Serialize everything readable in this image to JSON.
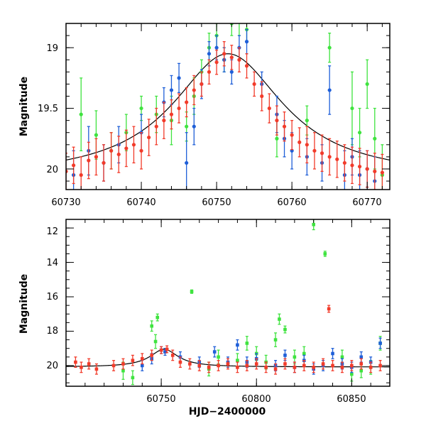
{
  "colors": {
    "green": "#3fe33f",
    "blue": "#1f5fd8",
    "red": "#f23b2a",
    "model": "#000000"
  },
  "chart_data": [
    {
      "type": "scatter",
      "name": "top-panel",
      "xlabel": "",
      "ylabel": "Magnitude",
      "xlim": [
        60730,
        60773
      ],
      "ylim": [
        20.17,
        18.8
      ],
      "y_inverted": true,
      "x_ticks": [
        "60730",
        "60740",
        "60750",
        "60760",
        "60770"
      ],
      "y_ticks": [
        "19",
        "19.5",
        "20"
      ],
      "grid": false,
      "model_curve": {
        "type": "lorentzian",
        "peak_x": 60751.5,
        "peak_mag": 19.05,
        "baseline_mag": 20.08,
        "width": 9
      },
      "series": [
        {
          "color": "green",
          "points": [
            [
              60732,
              19.55,
              0.3
            ],
            [
              60734,
              19.72,
              0.2
            ],
            [
              60736,
              19.85,
              0.15
            ],
            [
              60738,
              19.7,
              0.15
            ],
            [
              60740,
              19.5,
              0.1
            ],
            [
              60742,
              19.55,
              0.15
            ],
            [
              60744,
              19.6,
              0.2
            ],
            [
              60746,
              19.65,
              0.12
            ],
            [
              60747,
              19.4,
              0.15
            ],
            [
              60748,
              19.2,
              0.1
            ],
            [
              60749,
              19.0,
              0.12
            ],
            [
              60750,
              18.9,
              0.1
            ],
            [
              60751,
              19.1,
              0.1
            ],
            [
              60752,
              18.8,
              0.1
            ],
            [
              60753,
              18.75,
              0.15
            ],
            [
              60754,
              18.85,
              0.1
            ],
            [
              60758,
              19.75,
              0.15
            ],
            [
              60762,
              19.6,
              0.12
            ],
            [
              60765,
              19.0,
              0.12
            ],
            [
              60768,
              19.5,
              0.3
            ],
            [
              60769,
              19.7,
              0.2
            ],
            [
              60770,
              19.3,
              0.2
            ],
            [
              60771,
              19.75,
              0.25
            ],
            [
              60772,
              20.05,
              0.25
            ]
          ]
        },
        {
          "color": "blue",
          "points": [
            [
              60731,
              20.05,
              0.2
            ],
            [
              60733,
              19.85,
              0.2
            ],
            [
              60735,
              19.95,
              0.15
            ],
            [
              60737,
              19.8,
              0.15
            ],
            [
              60740,
              19.7,
              0.15
            ],
            [
              60743,
              19.45,
              0.12
            ],
            [
              60744,
              19.35,
              0.12
            ],
            [
              60745,
              19.25,
              0.12
            ],
            [
              60746,
              19.95,
              0.25
            ],
            [
              60747,
              19.65,
              0.15
            ],
            [
              60748,
              19.3,
              0.12
            ],
            [
              60749,
              19.05,
              0.1
            ],
            [
              60750,
              19.0,
              0.1
            ],
            [
              60751,
              19.1,
              0.1
            ],
            [
              60752,
              19.2,
              0.1
            ],
            [
              60753,
              19.0,
              0.1
            ],
            [
              60754,
              18.95,
              0.1
            ],
            [
              60756,
              19.3,
              0.1
            ],
            [
              60758,
              19.55,
              0.15
            ],
            [
              60759,
              19.75,
              0.15
            ],
            [
              60760,
              19.85,
              0.15
            ],
            [
              60762,
              19.9,
              0.15
            ],
            [
              60764,
              19.95,
              0.15
            ],
            [
              60765,
              19.35,
              0.2
            ],
            [
              60767,
              20.05,
              0.2
            ],
            [
              60768,
              19.9,
              0.15
            ],
            [
              60769,
              20.05,
              0.2
            ],
            [
              60770,
              20.0,
              0.15
            ],
            [
              60771,
              20.1,
              0.2
            ]
          ]
        },
        {
          "color": "red",
          "points": [
            [
              60730,
              20.02,
              0.15
            ],
            [
              60731,
              19.97,
              0.15
            ],
            [
              60732,
              20.05,
              0.15
            ],
            [
              60733,
              19.93,
              0.15
            ],
            [
              60734,
              19.9,
              0.15
            ],
            [
              60735,
              19.95,
              0.15
            ],
            [
              60736,
              19.85,
              0.15
            ],
            [
              60737,
              19.88,
              0.15
            ],
            [
              60738,
              19.83,
              0.15
            ],
            [
              60739,
              19.8,
              0.15
            ],
            [
              60740,
              19.85,
              0.15
            ],
            [
              60741,
              19.74,
              0.15
            ],
            [
              60742,
              19.65,
              0.15
            ],
            [
              60743,
              19.6,
              0.15
            ],
            [
              60744,
              19.55,
              0.12
            ],
            [
              60745,
              19.5,
              0.12
            ],
            [
              60746,
              19.45,
              0.12
            ],
            [
              60747,
              19.35,
              0.12
            ],
            [
              60748,
              19.3,
              0.1
            ],
            [
              60749,
              19.2,
              0.1
            ],
            [
              60750,
              19.12,
              0.1
            ],
            [
              60751,
              19.05,
              0.1
            ],
            [
              60752,
              19.08,
              0.1
            ],
            [
              60753,
              19.1,
              0.1
            ],
            [
              60754,
              19.15,
              0.1
            ],
            [
              60755,
              19.3,
              0.1
            ],
            [
              60756,
              19.4,
              0.12
            ],
            [
              60757,
              19.5,
              0.12
            ],
            [
              60758,
              19.6,
              0.12
            ],
            [
              60759,
              19.65,
              0.12
            ],
            [
              60760,
              19.72,
              0.12
            ],
            [
              60761,
              19.78,
              0.12
            ],
            [
              60762,
              19.8,
              0.15
            ],
            [
              60763,
              19.85,
              0.15
            ],
            [
              60764,
              19.87,
              0.15
            ],
            [
              60765,
              19.9,
              0.15
            ],
            [
              60766,
              19.92,
              0.15
            ],
            [
              60767,
              19.95,
              0.15
            ],
            [
              60768,
              19.97,
              0.15
            ],
            [
              60769,
              19.98,
              0.15
            ],
            [
              60770,
              20.0,
              0.15
            ],
            [
              60771,
              20.02,
              0.15
            ],
            [
              60772,
              20.03,
              0.15
            ]
          ]
        }
      ]
    },
    {
      "type": "scatter",
      "name": "bottom-panel",
      "xlabel": "HJD−2400000",
      "ylabel": "Magnitude",
      "xlim": [
        60700,
        60870
      ],
      "ylim": [
        21.2,
        11.5
      ],
      "y_inverted": true,
      "x_ticks": [
        "60750",
        "60800",
        "60850"
      ],
      "y_ticks": [
        "12",
        "14",
        "16",
        "18",
        "20"
      ],
      "grid": false,
      "model_curve": {
        "type": "lorentzian",
        "peak_x": 60751.5,
        "peak_mag": 19.05,
        "baseline_mag": 20.08,
        "width": 9
      },
      "series": [
        {
          "color": "green",
          "points": [
            [
              60730,
              20.3,
              0.5
            ],
            [
              60735,
              20.7,
              0.4
            ],
            [
              60745,
              17.7,
              0.3
            ],
            [
              60747,
              18.6,
              0.4
            ],
            [
              60748,
              17.2,
              0.2
            ],
            [
              60766,
              15.7,
              0.1
            ],
            [
              60775,
              20.2,
              0.4
            ],
            [
              60780,
              19.5,
              0.4
            ],
            [
              60790,
              19.7,
              0.4
            ],
            [
              60795,
              18.7,
              0.4
            ],
            [
              60800,
              19.3,
              0.4
            ],
            [
              60805,
              19.8,
              0.4
            ],
            [
              60810,
              18.5,
              0.4
            ],
            [
              60812,
              17.3,
              0.3
            ],
            [
              60815,
              17.9,
              0.2
            ],
            [
              60820,
              19.5,
              0.4
            ],
            [
              60825,
              19.3,
              0.4
            ],
            [
              60830,
              11.8,
              0.3
            ],
            [
              60836,
              13.5,
              0.15
            ],
            [
              60845,
              19.5,
              0.4
            ],
            [
              60850,
              20.5,
              0.4
            ],
            [
              60855,
              20.3,
              0.4
            ],
            [
              60860,
              20.1,
              0.4
            ],
            [
              60865,
              18.7,
              0.4
            ]
          ]
        },
        {
          "color": "blue",
          "points": [
            [
              60740,
              20.0,
              0.3
            ],
            [
              60745,
              19.6,
              0.3
            ],
            [
              60750,
              19.1,
              0.2
            ],
            [
              60752,
              19.2,
              0.2
            ],
            [
              60760,
              19.5,
              0.3
            ],
            [
              60770,
              19.8,
              0.3
            ],
            [
              60778,
              19.2,
              0.3
            ],
            [
              60785,
              19.8,
              0.3
            ],
            [
              60790,
              18.8,
              0.3
            ],
            [
              60795,
              19.8,
              0.3
            ],
            [
              60800,
              19.6,
              0.3
            ],
            [
              60810,
              20.0,
              0.3
            ],
            [
              60815,
              19.4,
              0.3
            ],
            [
              60820,
              20.1,
              0.3
            ],
            [
              60825,
              19.7,
              0.3
            ],
            [
              60830,
              20.2,
              0.3
            ],
            [
              60835,
              20.0,
              0.3
            ],
            [
              60840,
              19.3,
              0.3
            ],
            [
              60845,
              19.9,
              0.3
            ],
            [
              60850,
              20.1,
              0.3
            ],
            [
              60855,
              19.5,
              0.3
            ],
            [
              60860,
              19.8,
              0.3
            ],
            [
              60865,
              18.7,
              0.3
            ]
          ]
        },
        {
          "color": "red",
          "points": [
            [
              60705,
              19.8,
              0.3
            ],
            [
              60708,
              20.1,
              0.3
            ],
            [
              60712,
              19.9,
              0.3
            ],
            [
              60716,
              20.2,
              0.3
            ],
            [
              60725,
              20.0,
              0.3
            ],
            [
              60730,
              19.9,
              0.3
            ],
            [
              60735,
              19.7,
              0.3
            ],
            [
              60740,
              19.6,
              0.3
            ],
            [
              60745,
              19.4,
              0.3
            ],
            [
              60750,
              19.1,
              0.2
            ],
            [
              60753,
              19.05,
              0.2
            ],
            [
              60756,
              19.4,
              0.3
            ],
            [
              60760,
              19.8,
              0.3
            ],
            [
              60765,
              19.9,
              0.3
            ],
            [
              60770,
              20.0,
              0.3
            ],
            [
              60775,
              20.1,
              0.3
            ],
            [
              60780,
              20.0,
              0.3
            ],
            [
              60785,
              19.9,
              0.3
            ],
            [
              60790,
              20.1,
              0.3
            ],
            [
              60795,
              20.0,
              0.3
            ],
            [
              60800,
              19.9,
              0.3
            ],
            [
              60805,
              20.1,
              0.3
            ],
            [
              60810,
              20.2,
              0.3
            ],
            [
              60815,
              19.9,
              0.3
            ],
            [
              60820,
              20.1,
              0.3
            ],
            [
              60825,
              20.0,
              0.3
            ],
            [
              60830,
              20.1,
              0.3
            ],
            [
              60835,
              19.9,
              0.3
            ],
            [
              60838,
              16.7,
              0.2
            ],
            [
              60840,
              20.0,
              0.3
            ],
            [
              60845,
              20.1,
              0.3
            ],
            [
              60850,
              20.0,
              0.3
            ],
            [
              60855,
              19.9,
              0.3
            ],
            [
              60860,
              20.1,
              0.3
            ],
            [
              60865,
              20.0,
              0.3
            ]
          ]
        }
      ]
    }
  ]
}
